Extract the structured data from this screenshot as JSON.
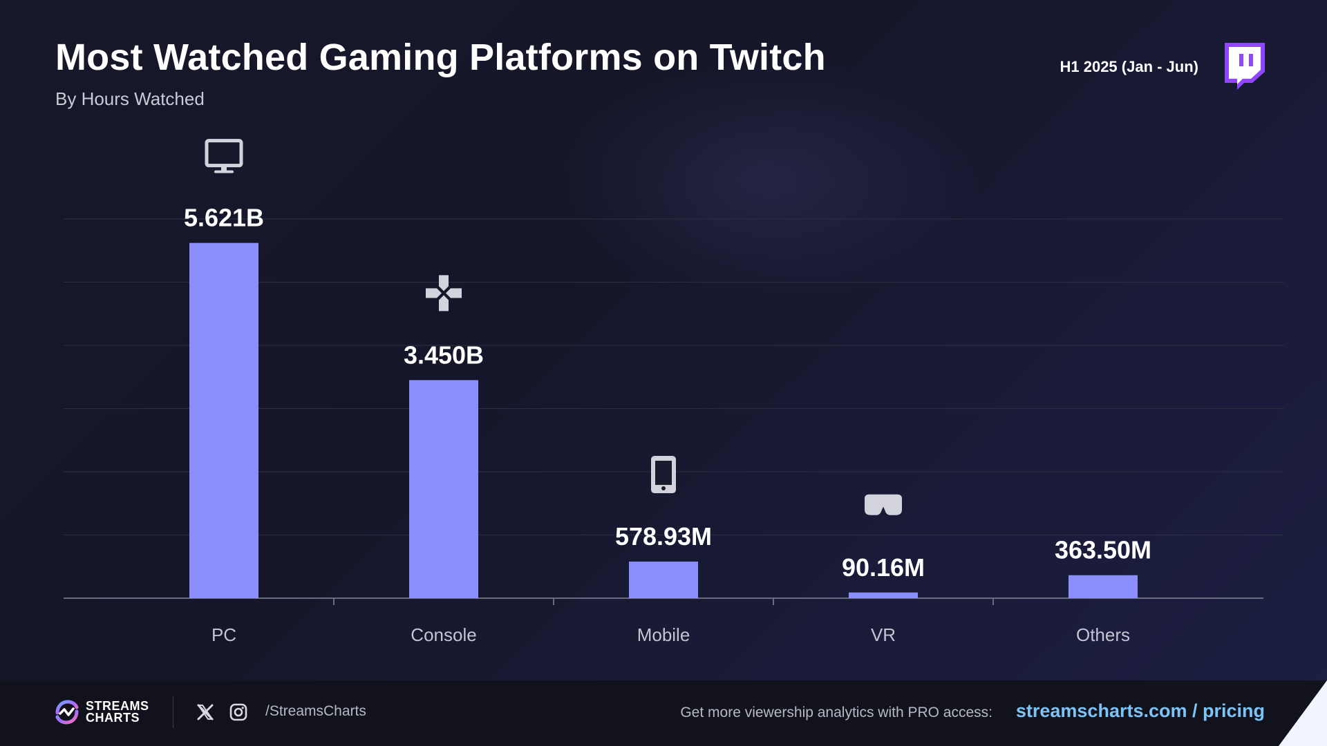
{
  "header": {
    "title": "Most Watched Gaming Platforms on Twitch",
    "subtitle": "By Hours Watched",
    "period": "H1 2025 (Jan - Jun)"
  },
  "colors": {
    "bar": "#8b8ffd",
    "accent_link": "#7cc4f8",
    "twitch": "#9146ff"
  },
  "chart_data": {
    "type": "bar",
    "title": "Most Watched Gaming Platforms on Twitch",
    "subtitle": "By Hours Watched",
    "categories": [
      "PC",
      "Console",
      "Mobile",
      "VR",
      "Others"
    ],
    "values": [
      5621000000,
      3450000000,
      578930000,
      90160000,
      363500000
    ],
    "value_labels": [
      "5.621B",
      "3.450B",
      "578.93M",
      "90.16M",
      "363.50M"
    ],
    "icons": [
      "monitor-icon",
      "gamepad-icon",
      "smartphone-icon",
      "vr-headset-icon",
      ""
    ],
    "ylim": [
      0,
      6000000000
    ],
    "grid": true
  },
  "footer": {
    "brand_line1": "STREAMS",
    "brand_line2": "CHARTS",
    "handle": "/StreamsCharts",
    "cta": "Get more viewership analytics with PRO access:",
    "link": "streamscharts.com / pricing"
  }
}
